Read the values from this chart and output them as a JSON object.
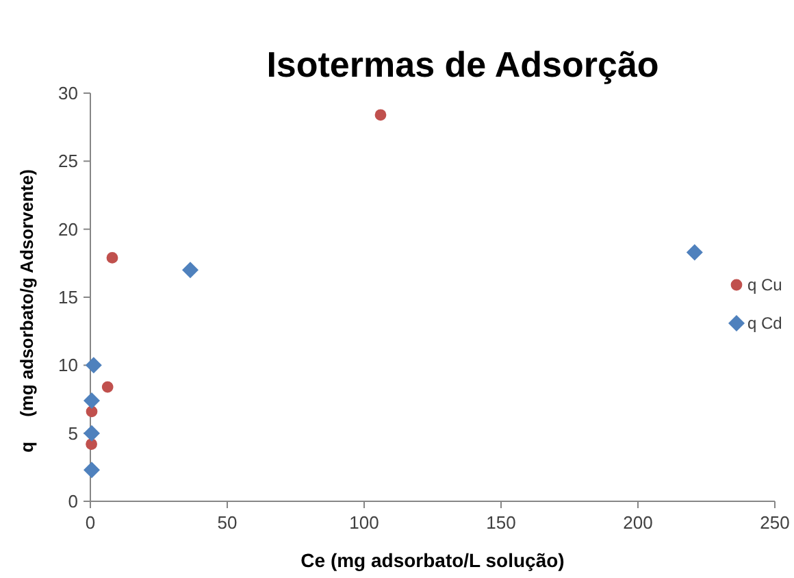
{
  "chart_data": {
    "type": "scatter",
    "title": "Isotermas de Adsorção",
    "xlabel": "Ce (mg adsorbato/L solução)",
    "ylabel": "q     (mg adsorbato/g Adsorvente)",
    "xlim": [
      0,
      250
    ],
    "xticks": [
      0,
      50,
      100,
      150,
      200,
      250
    ],
    "ylim": [
      0,
      30
    ],
    "yticks": [
      0,
      5,
      10,
      15,
      20,
      25,
      30
    ],
    "grid": false,
    "legend": "right",
    "series": [
      {
        "name": "q Cu",
        "color": "#c0504d",
        "marker": "circle",
        "x": [
          0.4,
          0.5,
          6.3,
          8,
          106
        ],
        "values": [
          4.2,
          6.6,
          8.4,
          17.9,
          28.4
        ]
      },
      {
        "name": "q Cd",
        "color": "#4f81bd",
        "marker": "diamond",
        "x": [
          0.5,
          0.5,
          0.5,
          1.2,
          36.5,
          220.7
        ],
        "values": [
          2.3,
          5.0,
          7.4,
          10.0,
          17.0,
          18.3
        ]
      }
    ]
  }
}
